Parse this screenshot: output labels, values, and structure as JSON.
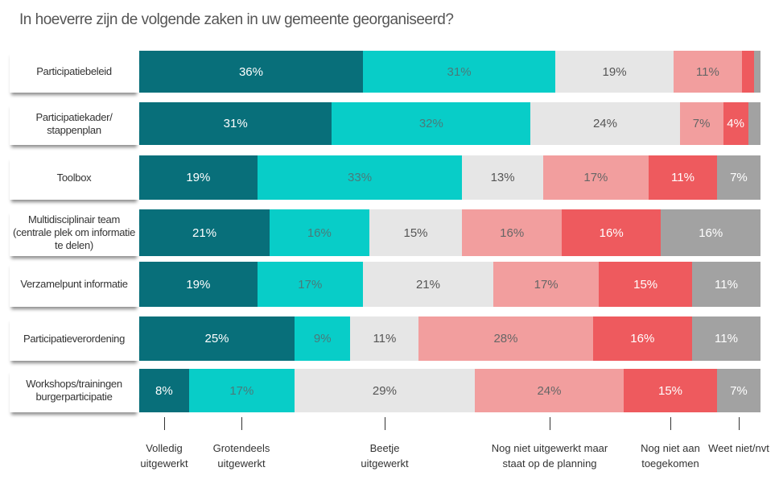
{
  "chart_data": {
    "type": "bar",
    "orientation": "horizontal",
    "stacked": true,
    "title": "In hoeverre zijn de volgende zaken in uw gemeente georganiseerd?",
    "categories": [
      "Participatiebeleid",
      "Participatiekader/ stappenplan",
      "Toolbox",
      "Multidisciplinair team (centrale plek om informatie te delen)",
      "Verzamelpunt informatie",
      "Participatieverordening",
      "Workshops/trainingen burgerparticipatie"
    ],
    "series": [
      {
        "name": "Volledig uitgewerkt",
        "color": "#086f7a",
        "text_color": "#ffffff",
        "values": [
          36,
          31,
          19,
          21,
          19,
          25,
          8
        ]
      },
      {
        "name": "Grotendeels uitgewerkt",
        "color": "#08cdc8",
        "text_color": "#4a7a7a",
        "values": [
          31,
          32,
          33,
          16,
          17,
          9,
          17
        ]
      },
      {
        "name": "Beetje uitgewerkt",
        "color": "#e6e6e6",
        "text_color": "#555555",
        "values": [
          19,
          24,
          13,
          15,
          21,
          11,
          29
        ]
      },
      {
        "name": "Nog niet uitgewerkt maar staat op de planning",
        "color": "#f29e9e",
        "text_color": "#666666",
        "values": [
          11,
          7,
          17,
          16,
          17,
          28,
          24
        ]
      },
      {
        "name": "Nog niet aan toegekomen",
        "color": "#ee5a5e",
        "text_color": "#ffffff",
        "values": [
          2,
          4,
          11,
          16,
          15,
          16,
          15
        ]
      },
      {
        "name": "Weet niet/nvt",
        "color": "#a2a2a2",
        "text_color": "#ffffff",
        "values": [
          1,
          2,
          7,
          16,
          11,
          11,
          7
        ]
      }
    ],
    "unlabeled_segments": [
      [
        0,
        4
      ],
      [
        0,
        5
      ],
      [
        1,
        5
      ]
    ],
    "value_suffix": "%",
    "xlim": [
      0,
      100
    ],
    "legend_placement": "bottom",
    "grid": false
  }
}
